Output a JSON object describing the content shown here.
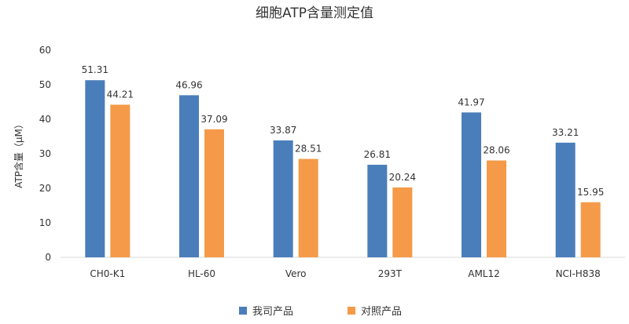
{
  "chart_data": {
    "type": "bar",
    "title": "细胞ATP含量测定值",
    "ylabel": "ATP含量（μM）",
    "xlabel": "",
    "ylim": [
      0,
      60
    ],
    "yticks": [
      "0",
      "10",
      "20",
      "30",
      "40",
      "50",
      "60"
    ],
    "grid": false,
    "legend_position": "bottom",
    "categories": [
      "CH0-K1",
      "HL-60",
      "Vero",
      "293T",
      "AML12",
      "NCI-H838"
    ],
    "series": [
      {
        "name": "我司产品",
        "color": "#4a7ebb",
        "values": [
          51.31,
          46.96,
          33.87,
          26.81,
          41.97,
          33.21
        ],
        "labels": [
          "51.31",
          "46.96",
          "33.87",
          "26.81",
          "41.97",
          "33.21"
        ]
      },
      {
        "name": "对照产品",
        "color": "#f59a48",
        "values": [
          44.21,
          37.09,
          28.51,
          20.24,
          28.06,
          15.95
        ],
        "labels": [
          "44.21",
          "37.09",
          "28.51",
          "20.24",
          "28.06",
          "15.95"
        ]
      }
    ]
  }
}
